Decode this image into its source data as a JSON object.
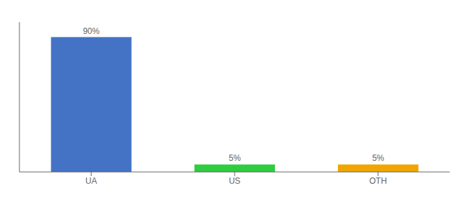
{
  "chart_data": {
    "type": "bar",
    "categories": [
      "UA",
      "US",
      "OTH"
    ],
    "values": [
      90,
      5,
      5
    ],
    "value_labels": [
      "90%",
      "5%",
      "5%"
    ],
    "colors": [
      "#4472c4",
      "#2ecc40",
      "#f0a500"
    ],
    "ylim": [
      0,
      100
    ],
    "data_labels": true,
    "tick_labels": "x",
    "grid": false
  }
}
